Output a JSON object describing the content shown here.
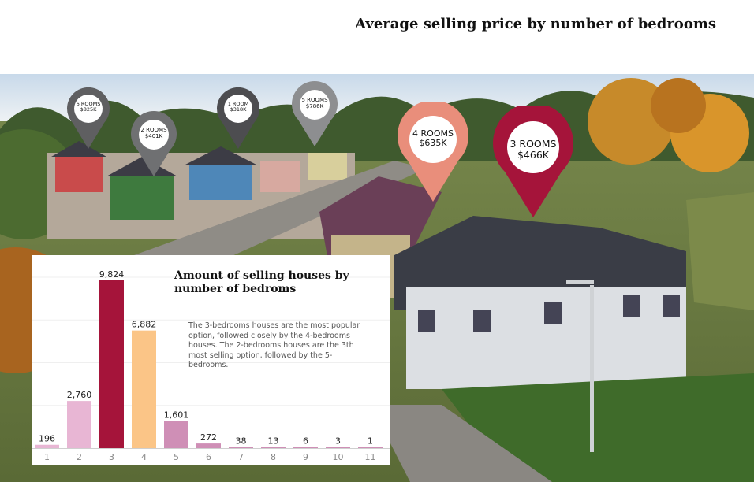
{
  "page_title": "Average selling price by number of bedrooms",
  "pins": [
    {
      "room": "6 ROOMS",
      "price": "$825K",
      "color": "#5f5f61"
    },
    {
      "room": "2 ROOMS",
      "price": "$401K",
      "color": "#6f7072"
    },
    {
      "room": "1 ROOM",
      "price": "$318K",
      "color": "#4d4d50"
    },
    {
      "room": "5 ROOMS",
      "price": "$786K",
      "color": "#8d8e90"
    },
    {
      "room": "4 ROOMS",
      "price": "$635K",
      "color": "#e98e7b"
    },
    {
      "room": "3 ROOMS",
      "price": "$466K",
      "color": "#a5143a"
    }
  ],
  "chart_data": {
    "type": "bar",
    "title": "Amount of selling houses by number of bedroms",
    "note": "The 3-bedrooms houses are the most popular option, followed closely by the 4-bedrooms houses.  The 2-bedrooms houses are the 3th most selling option, followed by the 5-bedrooms.",
    "categories": [
      "1",
      "2",
      "3",
      "4",
      "5",
      "6",
      "7",
      "8",
      "9",
      "10",
      "11"
    ],
    "values": [
      196,
      2760,
      9824,
      6882,
      1601,
      272,
      38,
      13,
      6,
      3,
      1
    ],
    "value_labels": [
      "196",
      "2,760",
      "9,824",
      "6,882",
      "1,601",
      "272",
      "38",
      "13",
      "6",
      "3",
      "1"
    ],
    "colors": [
      "#e8b6d4",
      "#e8b6d4",
      "#a5143a",
      "#fbc587",
      "#cf8fb6",
      "#cf8fb6",
      "#cf8fb6",
      "#cf8fb6",
      "#cf8fb6",
      "#cf8fb6",
      "#cf8fb6"
    ],
    "ylim": [
      0,
      10000
    ],
    "xlabel": "",
    "ylabel": "",
    "grid": true
  }
}
